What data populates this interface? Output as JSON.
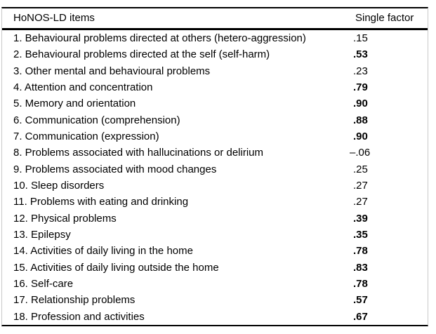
{
  "table": {
    "header": {
      "items_label": "HoNOS-LD items",
      "factor_label": "Single factor"
    },
    "rows": [
      {
        "item": "1. Behavioural problems directed at others (hetero-aggression)",
        "value": ".15",
        "bold": false
      },
      {
        "item": "2. Behavioural problems directed at the self (self-harm)",
        "value": ".53",
        "bold": true
      },
      {
        "item": "3. Other mental and behavioural problems",
        "value": ".23",
        "bold": false
      },
      {
        "item": "4. Attention and concentration",
        "value": ".79",
        "bold": true
      },
      {
        "item": "5. Memory and orientation",
        "value": ".90",
        "bold": true
      },
      {
        "item": "6. Communication (comprehension)",
        "value": ".88",
        "bold": true
      },
      {
        "item": "7. Communication (expression)",
        "value": ".90",
        "bold": true
      },
      {
        "item": "8. Problems associated with hallucinations or delirium",
        "value": "–.06",
        "bold": false
      },
      {
        "item": "9. Problems associated with mood changes",
        "value": ".25",
        "bold": false
      },
      {
        "item": "10. Sleep disorders",
        "value": ".27",
        "bold": false
      },
      {
        "item": "11. Problems with eating and drinking",
        "value": ".27",
        "bold": false
      },
      {
        "item": "12. Physical problems",
        "value": ".39",
        "bold": true
      },
      {
        "item": "13. Epilepsy",
        "value": ".35",
        "bold": true
      },
      {
        "item": "14. Activities of daily living in the home",
        "value": ".78",
        "bold": true
      },
      {
        "item": "15. Activities of daily living outside the home",
        "value": ".83",
        "bold": true
      },
      {
        "item": "16. Self-care",
        "value": ".78",
        "bold": true
      },
      {
        "item": "17. Relationship problems",
        "value": ".57",
        "bold": true
      },
      {
        "item": "18. Profession and activities",
        "value": ".67",
        "bold": true
      }
    ]
  },
  "colors": {
    "rule": "#000000",
    "side_border": "#c9c9c9",
    "text": "#000000",
    "background": "#ffffff"
  }
}
